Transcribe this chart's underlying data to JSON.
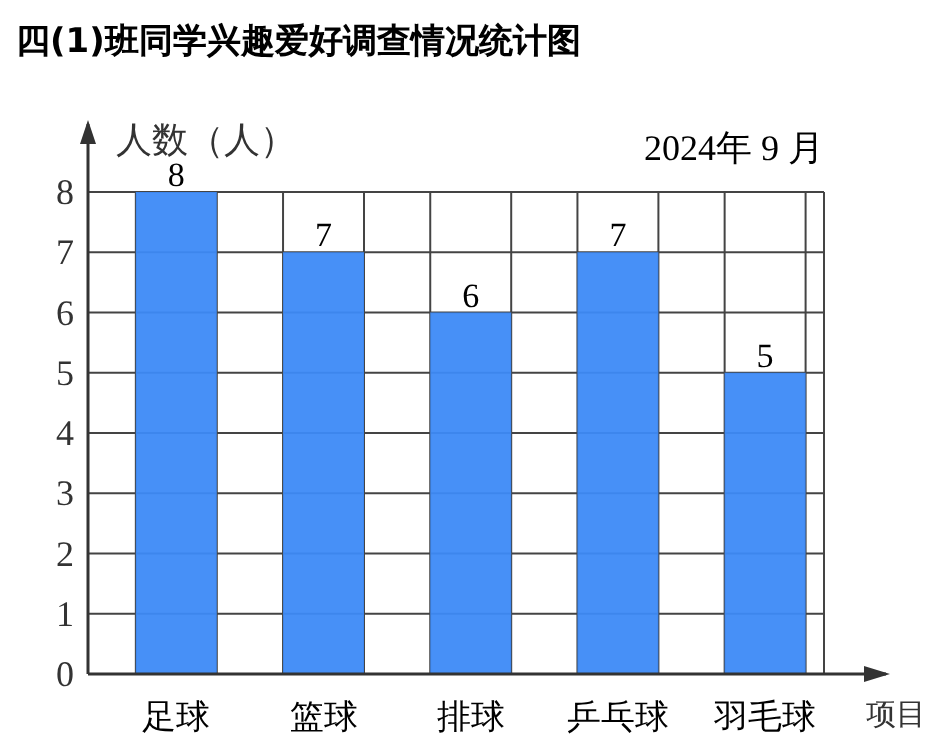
{
  "chart_data": {
    "type": "bar",
    "title": "四(1)班同学兴趣爱好调查情况统计图",
    "ylabel": "人数（人）",
    "xlabel": "项目",
    "annotations": [
      "2024年 9 月"
    ],
    "categories": [
      "足球",
      "篮球",
      "排球",
      "乒乓球",
      "羽毛球"
    ],
    "values": [
      8,
      7,
      6,
      7,
      5
    ],
    "color": "#3d8af7",
    "ylim": [
      0,
      8
    ],
    "yticks": [
      0,
      1,
      2,
      3,
      4,
      5,
      6,
      7,
      8
    ],
    "grid": true,
    "data_labels": true
  }
}
